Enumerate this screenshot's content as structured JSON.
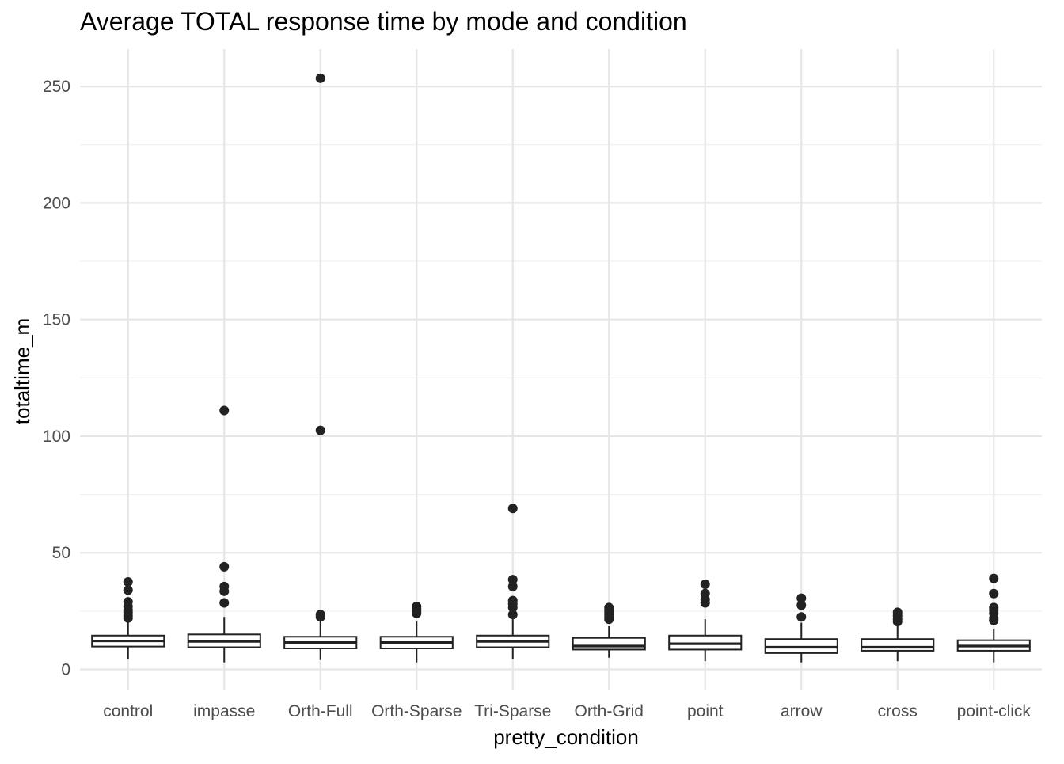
{
  "chart_data": {
    "type": "boxplot",
    "title": "Average TOTAL response time by mode and condition",
    "xlabel": "pretty_condition",
    "ylabel": "totaltime_m",
    "ylim": [
      -9,
      266
    ],
    "yticks": [
      0,
      50,
      100,
      150,
      200,
      250
    ],
    "grid": true,
    "categories": [
      "control",
      "impasse",
      "Orth-Full",
      "Orth-Sparse",
      "Tri-Sparse",
      "Orth-Grid",
      "point",
      "arrow",
      "cross",
      "point-click"
    ],
    "boxes": [
      {
        "category": "control",
        "min": 4.5,
        "q1": 9.8,
        "median": 12.2,
        "q3": 14.5,
        "max": 21.0,
        "outliers": [
          22.0,
          23.0,
          24.5,
          25.5,
          27.0,
          29.0,
          34.0,
          37.5
        ]
      },
      {
        "category": "impasse",
        "min": 3.0,
        "q1": 9.5,
        "median": 12.0,
        "q3": 15.0,
        "max": 22.5,
        "outliers": [
          28.5,
          33.5,
          35.5,
          44.0,
          111.0
        ]
      },
      {
        "category": "Orth-Full",
        "min": 4.0,
        "q1": 9.0,
        "median": 11.5,
        "q3": 14.0,
        "max": 21.0,
        "outliers": [
          22.5,
          23.5,
          102.5,
          253.5
        ]
      },
      {
        "category": "Orth-Sparse",
        "min": 3.0,
        "q1": 9.0,
        "median": 11.5,
        "q3": 14.0,
        "max": 20.5,
        "outliers": [
          24.0,
          25.0,
          26.0,
          27.0
        ]
      },
      {
        "category": "Tri-Sparse",
        "min": 4.5,
        "q1": 9.5,
        "median": 12.0,
        "q3": 14.5,
        "max": 21.5,
        "outliers": [
          23.5,
          26.5,
          28.0,
          29.5,
          35.5,
          38.5,
          69.0
        ]
      },
      {
        "category": "Orth-Grid",
        "min": 5.0,
        "q1": 8.5,
        "median": 10.0,
        "q3": 13.5,
        "max": 18.5,
        "outliers": [
          21.5,
          22.5,
          23.5,
          24.5,
          25.5,
          26.5
        ]
      },
      {
        "category": "point",
        "min": 3.5,
        "q1": 8.5,
        "median": 11.0,
        "q3": 14.5,
        "max": 21.5,
        "outliers": [
          28.5,
          30.0,
          32.5,
          36.5
        ]
      },
      {
        "category": "arrow",
        "min": 3.0,
        "q1": 7.0,
        "median": 9.5,
        "q3": 13.0,
        "max": 20.0,
        "outliers": [
          22.5,
          27.5,
          30.5
        ]
      },
      {
        "category": "cross",
        "min": 3.5,
        "q1": 8.0,
        "median": 9.5,
        "q3": 13.0,
        "max": 19.5,
        "outliers": [
          20.5,
          21.5,
          23.0,
          24.5
        ]
      },
      {
        "category": "point-click",
        "min": 3.0,
        "q1": 8.0,
        "median": 10.0,
        "q3": 12.5,
        "max": 17.5,
        "outliers": [
          21.0,
          22.0,
          24.0,
          25.5,
          26.5,
          32.5,
          39.0
        ]
      }
    ]
  }
}
